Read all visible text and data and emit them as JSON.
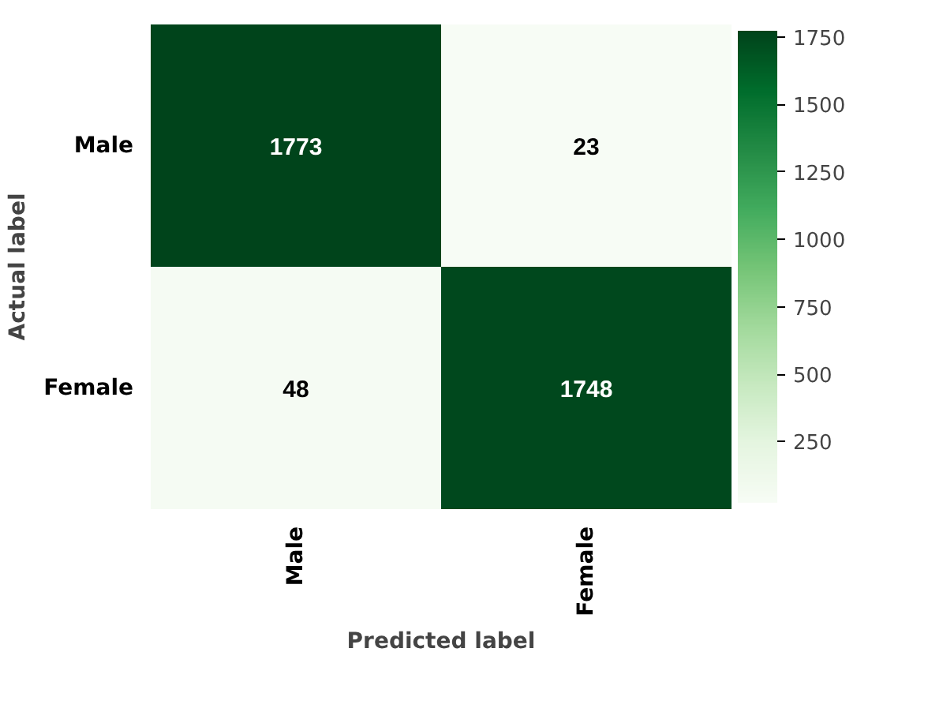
{
  "chart_data": {
    "type": "heatmap",
    "xlabel": "Predicted label",
    "ylabel": "Actual label",
    "categories": [
      "Male",
      "Female"
    ],
    "y_categories": [
      "Male",
      "Female"
    ],
    "cells": [
      [
        1773,
        23
      ],
      [
        48,
        1748
      ]
    ],
    "clim": [
      23,
      1773
    ],
    "cticks": [
      250,
      500,
      750,
      1000,
      1250,
      1500,
      1750
    ],
    "data_labels": true
  }
}
